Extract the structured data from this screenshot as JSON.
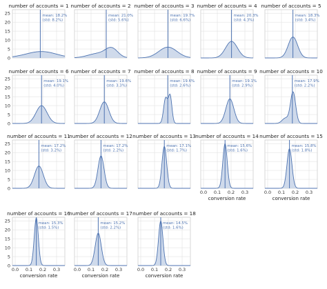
{
  "chart_data": {
    "type": "area",
    "title": "",
    "x_label": "conversion rate",
    "y_ticks": [
      0,
      5,
      10,
      15,
      20,
      25
    ],
    "x_ticks": [
      "0.0",
      "0.1",
      "0.2",
      "0.3"
    ],
    "ylim": [
      0,
      27
    ],
    "xlim": [
      -0.02,
      0.36
    ],
    "grid": true,
    "colors": {
      "fill": "#c7d4e8",
      "line": "#4c72b0",
      "grid": "#dcdcdc"
    },
    "panels": [
      {
        "title": "number of accounts = 1",
        "mean_label": "mean: 18.2%",
        "std_label": "(std: 8.2%)",
        "mean": 0.182,
        "std": 0.082,
        "shape": "wide"
      },
      {
        "title": "number of accounts = 2",
        "mean_label": "mean: 21.0%",
        "std_label": "(std: 5.6%)",
        "mean": 0.21,
        "std": 0.056,
        "shape": "right-bump"
      },
      {
        "title": "number of accounts = 3",
        "mean_label": "mean: 19.7%",
        "std_label": "(std: 6.6%)",
        "mean": 0.197,
        "std": 0.066,
        "shape": "plain"
      },
      {
        "title": "number of accounts = 4",
        "mean_label": "mean: 20.3%",
        "std_label": "(std: 4.3%)",
        "mean": 0.203,
        "std": 0.043,
        "shape": "plain"
      },
      {
        "title": "number of accounts = 5",
        "mean_label": "mean: 18.3%",
        "std_label": "(std: 3.4%)",
        "mean": 0.183,
        "std": 0.034,
        "shape": "plain"
      },
      {
        "title": "number of accounts = 6",
        "mean_label": "mean: 19.1%",
        "std_label": "(std: 4.0%)",
        "mean": 0.191,
        "std": 0.04,
        "shape": "plain"
      },
      {
        "title": "number of accounts = 7",
        "mean_label": "mean: 19.6%",
        "std_label": "(std: 3.3%)",
        "mean": 0.196,
        "std": 0.033,
        "shape": "plain"
      },
      {
        "title": "number of accounts = 8",
        "mean_label": "mean: 19.6%",
        "std_label": "(std: 2.6%)",
        "mean": 0.196,
        "std": 0.026,
        "shape": "double"
      },
      {
        "title": "number of accounts = 9",
        "mean_label": "mean: 19.1%",
        "std_label": "(std: 2.9%)",
        "mean": 0.191,
        "std": 0.029,
        "shape": "plain"
      },
      {
        "title": "number of accounts = 10",
        "mean_label": "mean: 17.9%",
        "std_label": "(std: 2.2%)",
        "mean": 0.179,
        "std": 0.022,
        "shape": "left-tail"
      },
      {
        "title": "number of accounts = 11",
        "mean_label": "mean: 17.2%",
        "std_label": "(std: 3.2%)",
        "mean": 0.172,
        "std": 0.032,
        "shape": "plain"
      },
      {
        "title": "number of accounts = 12",
        "mean_label": "mean: 17.2%",
        "std_label": "(std: 2.2%)",
        "mean": 0.172,
        "std": 0.022,
        "shape": "plain"
      },
      {
        "title": "number of accounts = 13",
        "mean_label": "mean: 17.1%",
        "std_label": "(std: 1.7%)",
        "mean": 0.171,
        "std": 0.017,
        "shape": "plain"
      },
      {
        "title": "number of accounts = 14",
        "mean_label": "mean: 15.6%",
        "std_label": "(std: 1.6%)",
        "mean": 0.156,
        "std": 0.016,
        "shape": "plain"
      },
      {
        "title": "number of accounts = 15",
        "mean_label": "mean: 15.8%",
        "std_label": "(std: 1.8%)",
        "mean": 0.158,
        "std": 0.018,
        "shape": "plain"
      },
      {
        "title": "number of accounts = 16",
        "mean_label": "mean: 15.3%",
        "std_label": "(std: 1.5%)",
        "mean": 0.153,
        "std": 0.015,
        "shape": "plain"
      },
      {
        "title": "number of accounts = 17",
        "mean_label": "mean: 15.2%",
        "std_label": "(std: 2.2%)",
        "mean": 0.152,
        "std": 0.022,
        "shape": "plain"
      },
      {
        "title": "number of accounts = 18",
        "mean_label": "mean: 14.5%",
        "std_label": "(std: 1.6%)",
        "mean": 0.145,
        "std": 0.016,
        "shape": "plain"
      }
    ]
  }
}
